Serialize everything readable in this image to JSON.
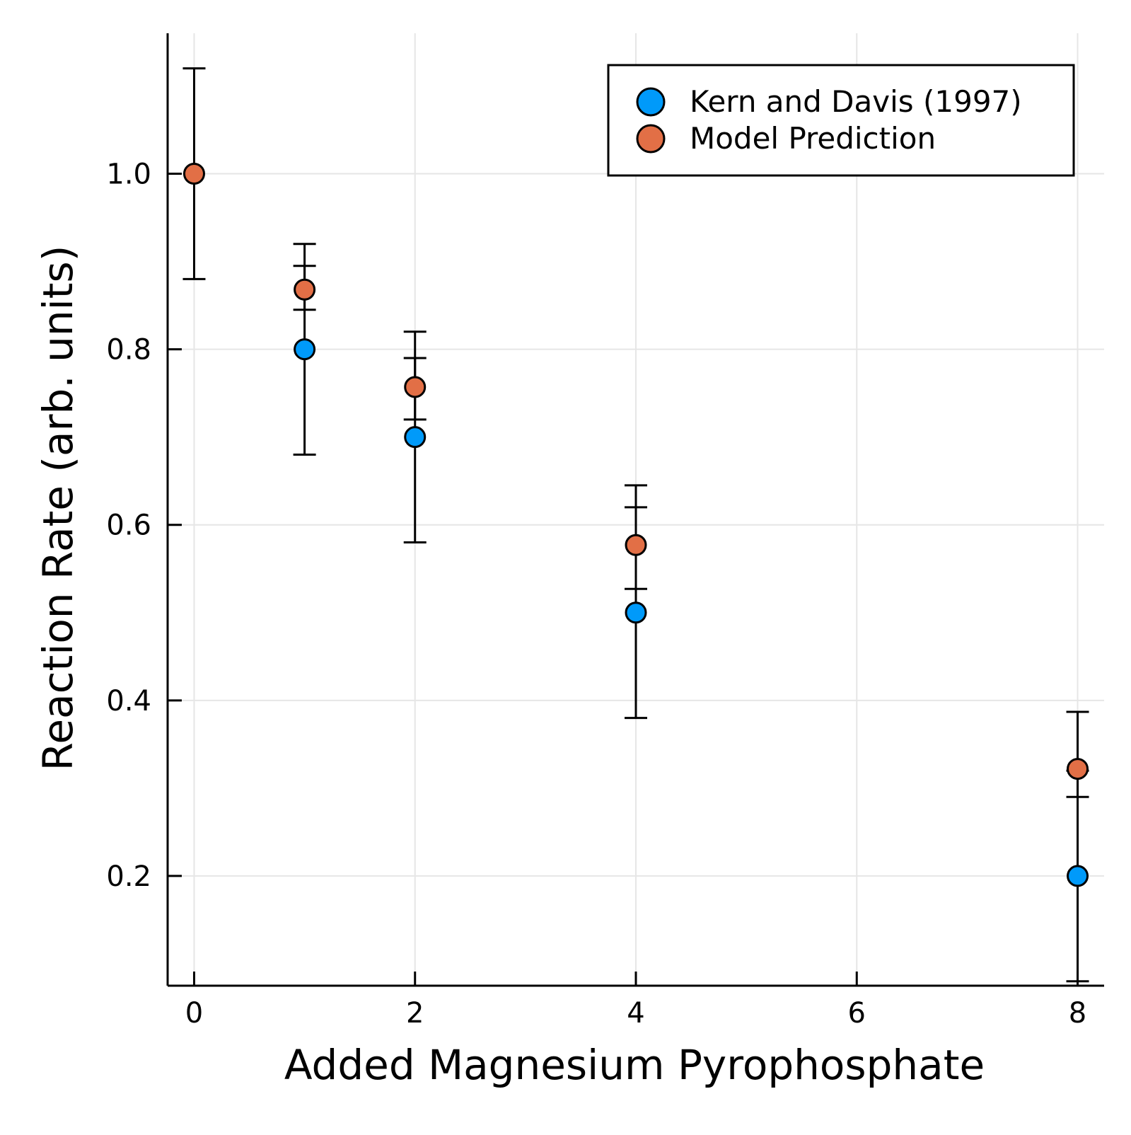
{
  "chart_data": {
    "type": "scatter",
    "title": "",
    "xlabel": "Added Magnesium Pyrophosphate",
    "ylabel": "Reaction Rate (arb. units)",
    "xlim": [
      -0.24,
      8.24
    ],
    "ylim": [
      0.075,
      1.16
    ],
    "xticks": [
      0,
      2,
      4,
      6,
      8
    ],
    "xtick_labels": [
      "0",
      "2",
      "4",
      "6",
      "8"
    ],
    "yticks": [
      0.2,
      0.4,
      0.6,
      0.8,
      1.0
    ],
    "ytick_labels": [
      "0.2",
      "0.4",
      "0.6",
      "0.8",
      "1.0"
    ],
    "grid": true,
    "legend_position": "top-right",
    "series": [
      {
        "name": "Kern and Davis (1997)",
        "color": "#009AFA",
        "points": [
          {
            "x": 1,
            "y": 0.8,
            "err_low": 0.68,
            "err_high": 0.92
          },
          {
            "x": 2,
            "y": 0.7,
            "err_low": 0.58,
            "err_high": 0.82
          },
          {
            "x": 4,
            "y": 0.5,
            "err_low": 0.38,
            "err_high": 0.62
          },
          {
            "x": 8,
            "y": 0.2,
            "err_low": 0.08,
            "err_high": 0.32
          }
        ]
      },
      {
        "name": "Model Prediction",
        "color": "#E26F46",
        "points": [
          {
            "x": 0,
            "y": 1.0,
            "err_low": 0.88,
            "err_high": 1.12
          },
          {
            "x": 1,
            "y": 0.868,
            "err_low": 0.845,
            "err_high": 0.895
          },
          {
            "x": 2,
            "y": 0.757,
            "err_low": 0.72,
            "err_high": 0.79
          },
          {
            "x": 4,
            "y": 0.577,
            "err_low": 0.527,
            "err_high": 0.645
          },
          {
            "x": 8,
            "y": 0.322,
            "err_low": 0.29,
            "err_high": 0.387
          }
        ]
      }
    ]
  }
}
